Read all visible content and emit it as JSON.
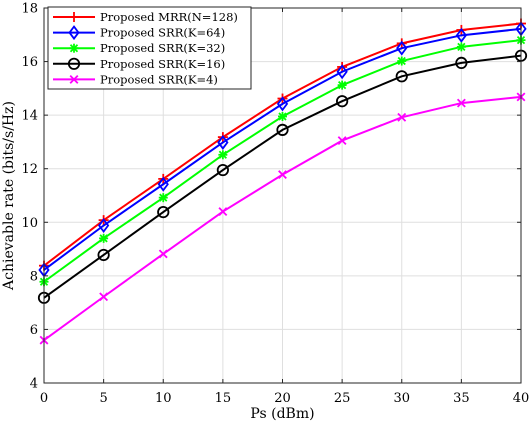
{
  "chart_data": {
    "type": "line",
    "xlabel": "Ps (dBm)",
    "ylabel": "Achievable rate (bits/s/Hz)",
    "xlim": [
      0,
      40
    ],
    "ylim": [
      4,
      18
    ],
    "xticks": [
      0,
      5,
      10,
      15,
      20,
      25,
      30,
      35,
      40
    ],
    "yticks": [
      4,
      6,
      8,
      10,
      12,
      14,
      16,
      18
    ],
    "grid": true,
    "legend_position": "top-left",
    "x": [
      0,
      5,
      10,
      15,
      20,
      25,
      30,
      35,
      40
    ],
    "series": [
      {
        "name": "Proposed MRR(N=128)",
        "color": "#ff0000",
        "marker": "plus",
        "values": [
          8.38,
          10.08,
          11.62,
          13.18,
          14.62,
          15.8,
          16.68,
          17.18,
          17.42
        ]
      },
      {
        "name": "Proposed SRR(K=64)",
        "color": "#0000ff",
        "marker": "diamond",
        "values": [
          8.22,
          9.88,
          11.42,
          12.98,
          14.42,
          15.62,
          16.5,
          16.98,
          17.22
        ]
      },
      {
        "name": "Proposed SRR(K=32)",
        "color": "#00ff00",
        "marker": "star",
        "values": [
          7.78,
          9.4,
          10.92,
          12.52,
          13.95,
          15.12,
          16.02,
          16.55,
          16.8
        ]
      },
      {
        "name": "Proposed SRR(K=16)",
        "color": "#000000",
        "marker": "circle",
        "values": [
          7.18,
          8.78,
          10.38,
          11.95,
          13.45,
          14.52,
          15.45,
          15.95,
          16.22
        ]
      },
      {
        "name": "Proposed SRR(K=4)",
        "color": "#ff00ff",
        "marker": "x",
        "values": [
          5.6,
          7.22,
          8.82,
          10.4,
          11.78,
          13.05,
          13.92,
          14.45,
          14.68
        ]
      }
    ]
  }
}
